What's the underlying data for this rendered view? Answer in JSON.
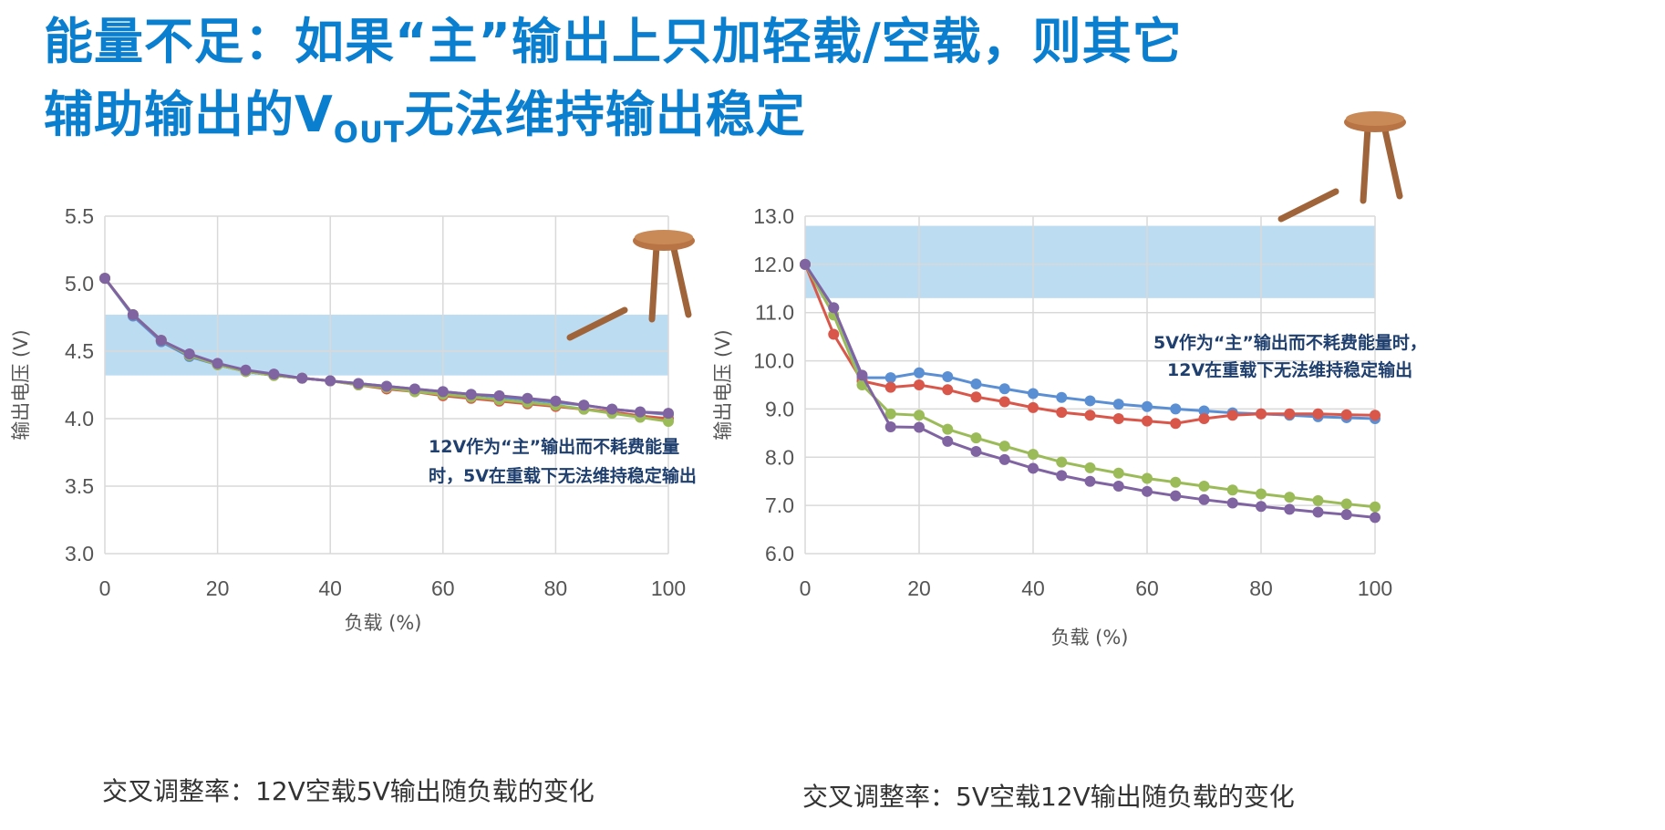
{
  "title": {
    "line1": "能量不足：如果“主”输出上只加轻载/空载，则其它",
    "line2_pre": "辅助输出的V",
    "line2_sub": "OUT",
    "line2_post": "无法维持输出稳定"
  },
  "captions": [
    "交叉调整率：12V空载5V输出随负载的变化",
    "交叉调整率：5V空载12V输出随负载的变化"
  ],
  "colors": {
    "title": "#0a7fd0",
    "band": "#bcdcf2",
    "series": [
      "#5b8fd4",
      "#d9574a",
      "#9bbb59",
      "#8064a2"
    ],
    "annotation": "#1f3f6e"
  },
  "icons": [
    "broken-stool-icon",
    "broken-stool-icon"
  ],
  "chart_data": [
    {
      "type": "line",
      "xlabel": "负载 (%)",
      "ylabel": "输出电压 (V)",
      "xlim": [
        0,
        100
      ],
      "ylim": [
        3.0,
        5.5
      ],
      "xticks": [
        0,
        20,
        40,
        60,
        80,
        100
      ],
      "yticks": [
        "3.0",
        "3.5",
        "4.0",
        "4.5",
        "5.0",
        "5.5"
      ],
      "grid": true,
      "band": [
        4.32,
        4.77
      ],
      "annotation": [
        "12V作为“主”输出而不耗费能量",
        "时，5V在重载下无法维持稳定输出"
      ],
      "x": [
        0,
        5,
        10,
        15,
        20,
        25,
        30,
        35,
        40,
        45,
        50,
        55,
        60,
        65,
        70,
        75,
        80,
        85,
        90,
        95,
        100
      ],
      "series": [
        {
          "values": [
            5.04,
            4.76,
            4.57,
            4.46,
            4.4,
            4.35,
            4.32,
            4.3,
            4.28,
            4.26,
            4.24,
            4.22,
            4.2,
            4.18,
            4.16,
            4.14,
            4.12,
            4.1,
            4.07,
            4.05,
            4.03
          ]
        },
        {
          "values": [
            5.04,
            4.77,
            4.58,
            4.47,
            4.4,
            4.35,
            4.32,
            4.3,
            4.28,
            4.25,
            4.22,
            4.2,
            4.17,
            4.15,
            4.13,
            4.11,
            4.09,
            4.07,
            4.05,
            4.02,
            4.0
          ]
        },
        {
          "values": [
            5.04,
            4.77,
            4.58,
            4.47,
            4.4,
            4.35,
            4.32,
            4.3,
            4.28,
            4.25,
            4.23,
            4.2,
            4.18,
            4.16,
            4.14,
            4.12,
            4.1,
            4.07,
            4.04,
            4.01,
            3.98
          ]
        },
        {
          "values": [
            5.04,
            4.77,
            4.58,
            4.48,
            4.41,
            4.36,
            4.33,
            4.3,
            4.28,
            4.26,
            4.24,
            4.22,
            4.2,
            4.18,
            4.17,
            4.15,
            4.13,
            4.1,
            4.07,
            4.05,
            4.04
          ]
        }
      ]
    },
    {
      "type": "line",
      "xlabel": "负载 (%)",
      "ylabel": "输出电压 (V)",
      "xlim": [
        0,
        100
      ],
      "ylim": [
        6.0,
        13.0
      ],
      "xticks": [
        0,
        20,
        40,
        60,
        80,
        100
      ],
      "yticks": [
        "6.0",
        "7.0",
        "8.0",
        "9.0",
        "10.0",
        "11.0",
        "12.0",
        "13.0"
      ],
      "grid": true,
      "band": [
        11.3,
        12.8
      ],
      "annotation": [
        "5V作为“主”输出而不耗费能量时，",
        "12V在重载下无法维持稳定输出"
      ],
      "x": [
        0,
        5,
        10,
        15,
        20,
        25,
        30,
        35,
        40,
        45,
        50,
        55,
        60,
        65,
        70,
        75,
        80,
        85,
        90,
        95,
        100
      ],
      "series": [
        {
          "values": [
            12.0,
            11.1,
            9.65,
            9.65,
            9.75,
            9.67,
            9.52,
            9.42,
            9.32,
            9.24,
            9.17,
            9.1,
            9.05,
            9.0,
            8.96,
            8.92,
            8.9,
            8.87,
            8.84,
            8.82,
            8.8
          ]
        },
        {
          "values": [
            12.0,
            10.55,
            9.58,
            9.45,
            9.5,
            9.4,
            9.25,
            9.15,
            9.03,
            8.93,
            8.87,
            8.8,
            8.75,
            8.7,
            8.8,
            8.87,
            8.9,
            8.9,
            8.9,
            8.88,
            8.87
          ]
        },
        {
          "values": [
            12.0,
            10.95,
            9.5,
            8.9,
            8.87,
            8.58,
            8.4,
            8.23,
            8.06,
            7.9,
            7.78,
            7.67,
            7.56,
            7.48,
            7.4,
            7.32,
            7.24,
            7.17,
            7.1,
            7.03,
            6.97
          ]
        },
        {
          "values": [
            12.0,
            11.1,
            9.7,
            8.63,
            8.62,
            8.33,
            8.12,
            7.95,
            7.77,
            7.62,
            7.5,
            7.4,
            7.29,
            7.2,
            7.12,
            7.05,
            6.98,
            6.92,
            6.86,
            6.81,
            6.75
          ]
        }
      ]
    }
  ]
}
